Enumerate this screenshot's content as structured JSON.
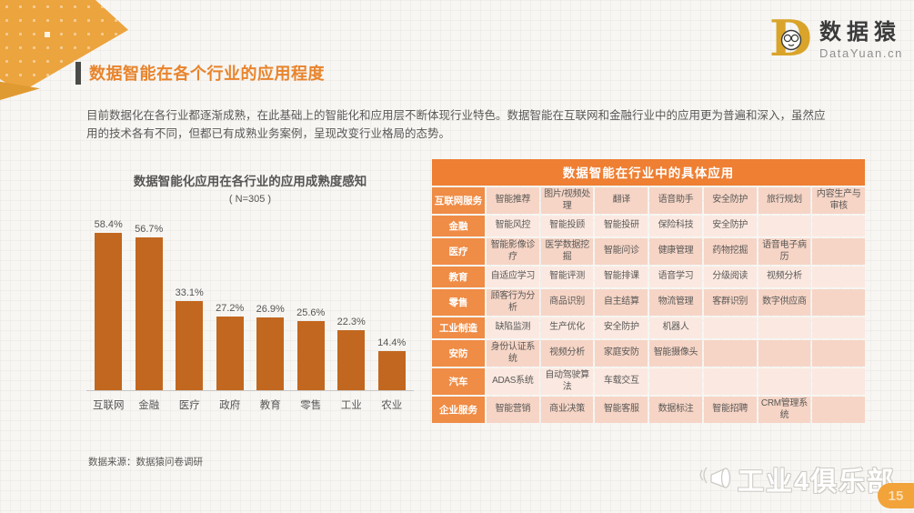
{
  "page": {
    "title": "数据智能在各个行业的应用程度",
    "intro": "目前数据化在各行业都逐渐成熟，在此基础上的智能化和应用层不断体现行业特色。数据智能在互联网和金融行业中的应用更为普遍和深入，虽然应用的技术各有不同，但都已有成熟业务案例，呈现改变行业格局的态势。",
    "source_note": "数据来源：数据猿问卷调研",
    "page_number": "15"
  },
  "logo": {
    "glyph": "D",
    "name_cn": "数据猿",
    "domain": "DataYuan.cn"
  },
  "chart_data": {
    "type": "bar",
    "title": "数据智能化应用在各行业的应用成熟度感知",
    "subtitle": "( N=305 )",
    "categories": [
      "互联网",
      "金融",
      "医疗",
      "政府",
      "教育",
      "零售",
      "工业",
      "农业"
    ],
    "values": [
      58.4,
      56.7,
      33.1,
      27.2,
      26.9,
      25.6,
      22.3,
      14.4
    ],
    "value_labels": [
      "58.4%",
      "56.7%",
      "33.1%",
      "27.2%",
      "26.9%",
      "25.6%",
      "22.3%",
      "14.4%"
    ],
    "xlabel": "",
    "ylabel": "",
    "ylim": [
      0,
      60
    ],
    "grid": false,
    "legend": "none",
    "bar_color": "#c2671f"
  },
  "table": {
    "title": "数据智能在行业中的具体应用",
    "rows": [
      {
        "label": "互联网服务",
        "cells": [
          "智能推荐",
          "图片/视频处理",
          "翻译",
          "语音助手",
          "安全防护",
          "旅行规划",
          "内容生产与审核"
        ]
      },
      {
        "label": "金融",
        "cells": [
          "智能风控",
          "智能投顾",
          "智能投研",
          "保险科技",
          "安全防护",
          "",
          ""
        ]
      },
      {
        "label": "医疗",
        "cells": [
          "智能影像诊疗",
          "医学数据挖掘",
          "智能问诊",
          "健康管理",
          "药物挖掘",
          "语音电子病历",
          ""
        ]
      },
      {
        "label": "教育",
        "cells": [
          "自适应学习",
          "智能评测",
          "智能排课",
          "语音学习",
          "分级阅读",
          "视频分析",
          ""
        ]
      },
      {
        "label": "零售",
        "cells": [
          "顾客行为分析",
          "商品识别",
          "自主结算",
          "物流管理",
          "客群识别",
          "数字供应商",
          ""
        ]
      },
      {
        "label": "工业制造",
        "cells": [
          "缺陷监测",
          "生产优化",
          "安全防护",
          "机器人",
          "",
          "",
          ""
        ]
      },
      {
        "label": "安防",
        "cells": [
          "身份认证系统",
          "视频分析",
          "家庭安防",
          "智能摄像头",
          "",
          "",
          ""
        ]
      },
      {
        "label": "汽车",
        "cells": [
          "ADAS系统",
          "自动驾驶算法",
          "车载交互",
          "",
          "",
          "",
          ""
        ]
      },
      {
        "label": "企业服务",
        "cells": [
          "智能营销",
          "商业决策",
          "智能客服",
          "数据标注",
          "智能招聘",
          "CRM管理系统",
          ""
        ]
      }
    ]
  },
  "watermark": {
    "icon": "megaphone-icon",
    "text": "工业4俱乐部"
  },
  "colors": {
    "accent_orange": "#e8842c",
    "banner_orange": "#eca43e",
    "bar_orange": "#c2671f",
    "table_header_orange": "#ee7f33",
    "table_label_orange": "#ef8c46",
    "cell_pink_dark": "#f6d5c6",
    "cell_pink_light": "#fbe9e1",
    "text_gray": "#5a5856",
    "logo_gold": "#d9a429"
  }
}
